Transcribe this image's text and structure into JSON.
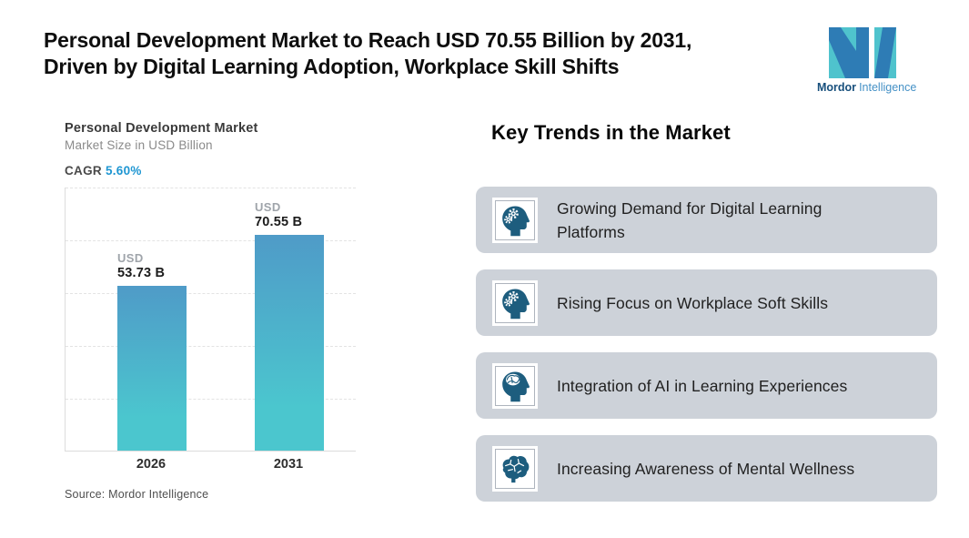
{
  "header": {
    "title_line1": "Personal Development Market to Reach USD 70.55 Billion by 2031,",
    "title_line2": "Driven by Digital Learning Adoption, Workplace Skill Shifts"
  },
  "logo": {
    "brand_bold": "Mordor",
    "brand_light": "Intelligence",
    "mark_teal": "#4FC3CD",
    "mark_blue": "#2E7CB5"
  },
  "chart": {
    "title": "Personal Development Market",
    "subtitle": "Market Size in USD Billion",
    "cagr_label": "CAGR",
    "cagr_value": "5.60%",
    "source": "Source: Mordor Intelligence"
  },
  "chart_data": {
    "type": "bar",
    "title": "Personal Development Market",
    "ylabel": "Market Size in USD Billion",
    "cagr": "5.60%",
    "categories": [
      "2026",
      "2031"
    ],
    "values": [
      53.73,
      70.55
    ],
    "value_labels": [
      {
        "prefix": "USD",
        "value": "53.73 B"
      },
      {
        "prefix": "USD",
        "value": "70.55 B"
      }
    ],
    "ylim": [
      0,
      86
    ],
    "grid": "dashed-horizontal",
    "legend": "none",
    "bar_gradient_top": "#4F9BC8",
    "bar_gradient_bottom": "#4BC6CE"
  },
  "trends": {
    "heading": "Key Trends in the Market",
    "card_bg": "#CDD2D9",
    "icon_color": "#1D5D7E",
    "items": [
      {
        "label": "Growing Demand for Digital Learning Platforms",
        "icon": "head-gears-icon"
      },
      {
        "label": "Rising Focus on Workplace Soft Skills",
        "icon": "head-gears-icon"
      },
      {
        "label": "Integration of AI in Learning Experiences",
        "icon": "head-brain-icon"
      },
      {
        "label": "Increasing Awareness of Mental Wellness",
        "icon": "brain-icon"
      }
    ]
  }
}
